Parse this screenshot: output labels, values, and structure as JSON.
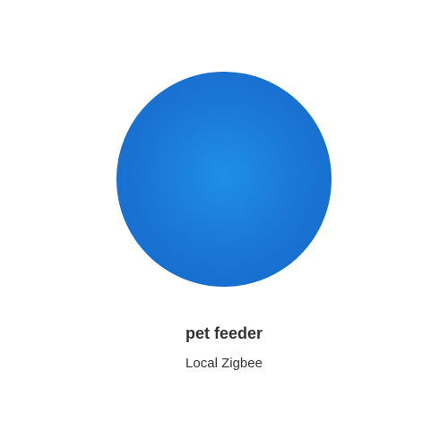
{
  "device": {
    "name": "pet feeder",
    "subtitle": "Local Zigbee",
    "orb_color": "#1b78d6"
  }
}
